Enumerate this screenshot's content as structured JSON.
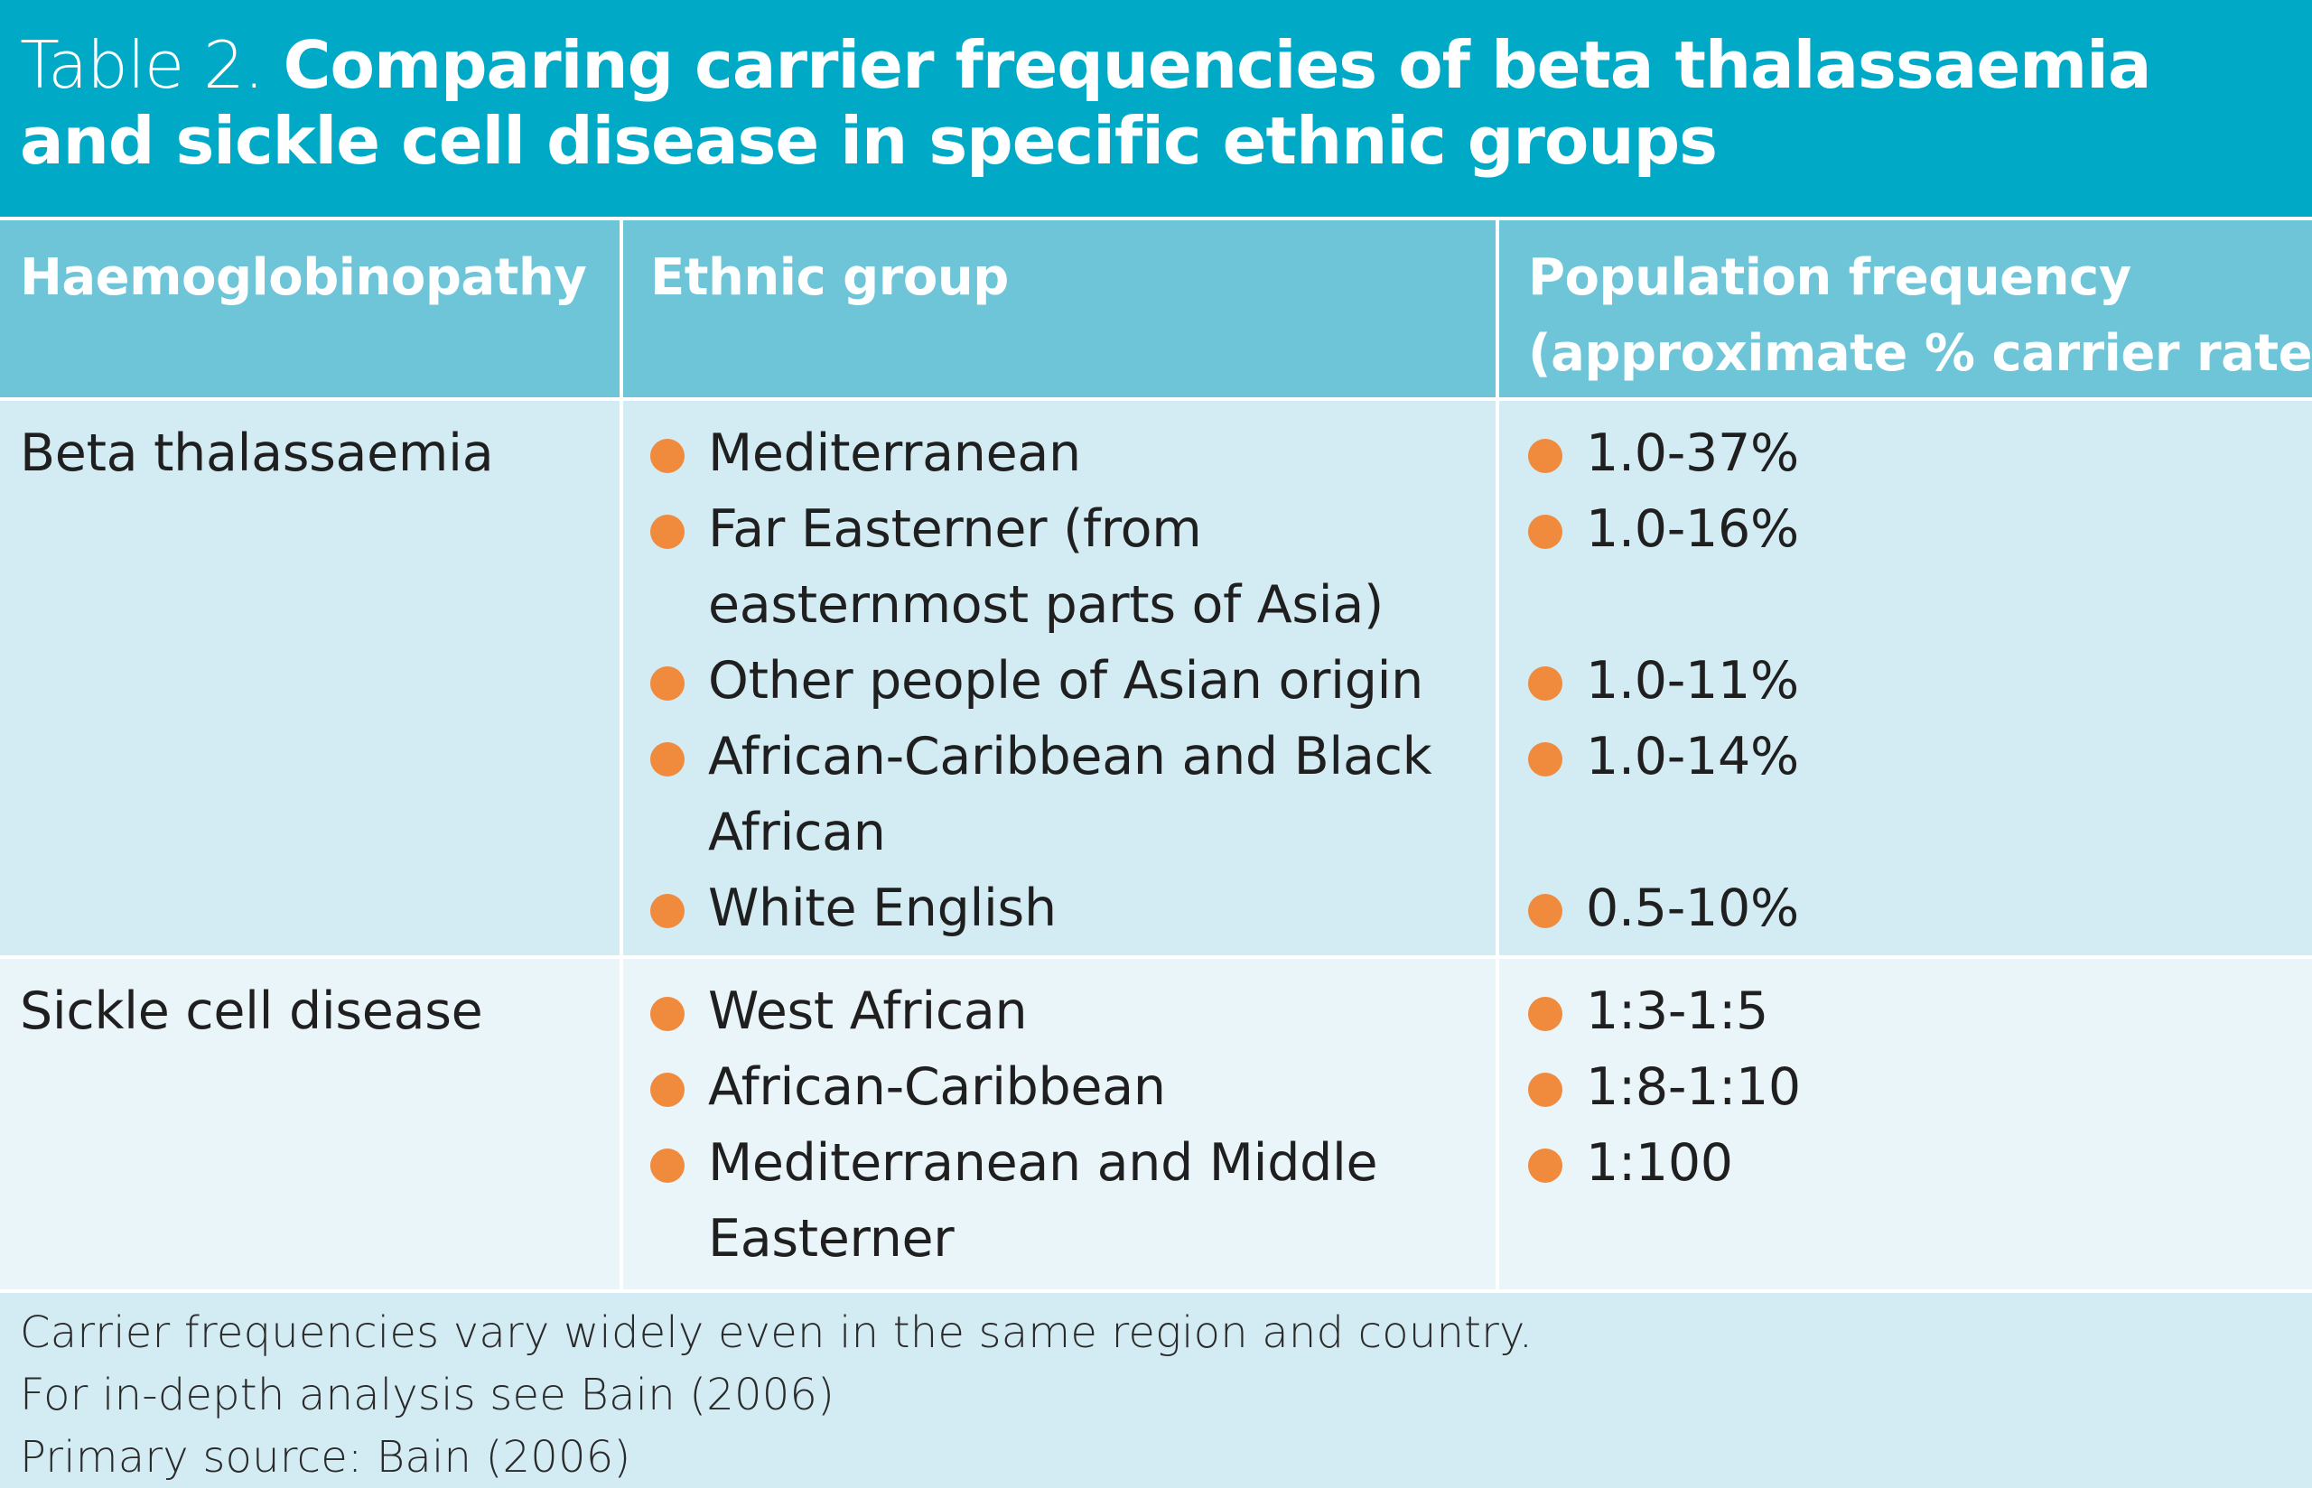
{
  "title": {
    "prefix": "Table 2.",
    "line1": "Comparing carrier frequencies of beta thalassaemia",
    "line2": "and sickle cell disease in specific ethnic groups"
  },
  "headers": {
    "col1": "Haemoglobinopathy",
    "col2": "Ethnic group",
    "col3_line1": "Population frequency",
    "col3_line2": "(approximate % carrier rate)"
  },
  "rows": [
    {
      "condition": "Beta thalassaemia",
      "groups": [
        {
          "lines": [
            "Mediterranean"
          ],
          "frequency": "1.0-37%"
        },
        {
          "lines": [
            "Far Easterner (from",
            "easternmost parts of Asia)"
          ],
          "frequency": "1.0-16%"
        },
        {
          "lines": [
            "Other people of Asian origin"
          ],
          "frequency": "1.0-11%"
        },
        {
          "lines": [
            "African-Caribbean and Black",
            "African"
          ],
          "frequency": "1.0-14%"
        },
        {
          "lines": [
            "White English"
          ],
          "frequency": "0.5-10%"
        }
      ]
    },
    {
      "condition": "Sickle cell disease",
      "groups": [
        {
          "lines": [
            "West African"
          ],
          "frequency": "1:3-1:5"
        },
        {
          "lines": [
            "African-Caribbean"
          ],
          "frequency": "1:8-1:10"
        },
        {
          "lines": [
            "Mediterranean and Middle",
            "Easterner"
          ],
          "frequency": "1:100"
        }
      ]
    }
  ],
  "notes": [
    "Carrier frequencies vary widely even in the same region and country.",
    "For in-depth analysis see Bain (2006)",
    "Primary source: Bain (2006)"
  ],
  "colors": {
    "title_bg": "#00aac7",
    "header_bg": "#6ec5d8",
    "row_light": "#d3ebf2",
    "row_lighter": "#eaf5f9",
    "bullet": "#f08a3c"
  }
}
